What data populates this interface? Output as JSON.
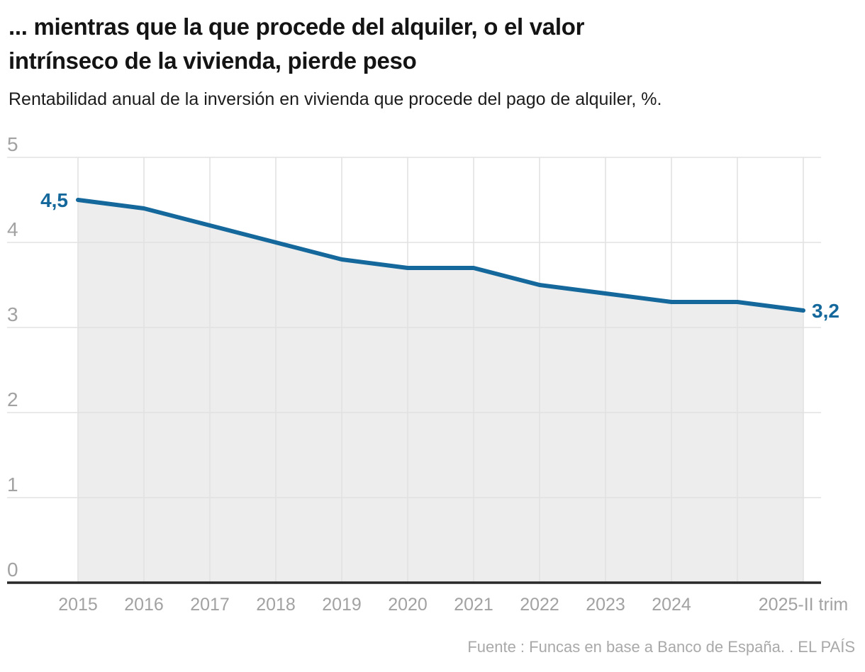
{
  "header": {
    "title_line1": "... mientras que la que procede del alquiler, o el valor",
    "title_line2": "intrínseco de la vivienda, pierde peso",
    "subtitle": "Rentabilidad anual de la inversión en vivienda que procede del pago de alquiler, %."
  },
  "footer": {
    "source": "Fuente : Funcas en base a Banco de España. . EL PAÍS"
  },
  "chart_data": {
    "type": "area",
    "title": "... mientras que la que procede del alquiler, o el valor intrínseco de la vivienda, pierde peso",
    "subtitle": "Rentabilidad anual de la inversión en vivienda que procede del pago de alquiler, %.",
    "source": "Fuente : Funcas en base a Banco de España. . EL PAÍS",
    "categories": [
      "2015",
      "2016",
      "2017",
      "2018",
      "2019",
      "2020",
      "2021",
      "2022",
      "2023",
      "2024",
      "",
      "2025-II trim"
    ],
    "values": [
      4.5,
      4.4,
      4.2,
      4.0,
      3.8,
      3.7,
      3.7,
      3.5,
      3.4,
      3.3,
      3.3,
      3.2
    ],
    "first_point_label": "4,5",
    "last_point_label": "3,2",
    "y_ticks": [
      5,
      4,
      3,
      2,
      1,
      0
    ],
    "ylim": [
      0,
      5
    ],
    "grid": true,
    "legend": "none",
    "line_color": "#15689b",
    "value_label_color": "#15689b",
    "area_fill_color": "#ededed",
    "grid_color": "#e2e2e2",
    "axis_line_color": "#282828",
    "tick_label_color": "#a2a2a2"
  }
}
